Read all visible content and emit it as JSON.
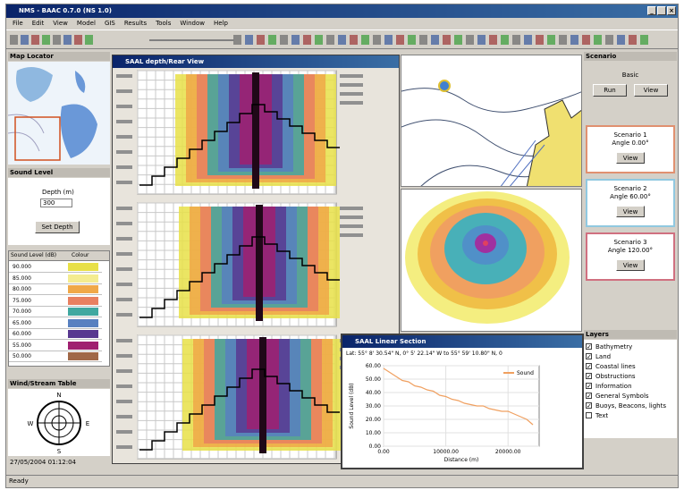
{
  "window": {
    "title": "NMS - BAAC 0.7.0 (NS 1.0)",
    "menu": [
      "File",
      "Edit",
      "View",
      "Model",
      "GIS",
      "Results",
      "Tools",
      "Window",
      "Help"
    ]
  },
  "left_panel": {
    "map_locator": "Map Locator",
    "sound_level": {
      "title": "Sound Level",
      "depth_label": "Depth (m)",
      "depth_value": "300",
      "button": "Set Depth"
    },
    "legend": {
      "headers": [
        "Sound Level (dB)",
        "Colour"
      ],
      "rows": [
        {
          "label": "90.000",
          "color": "#e8e048"
        },
        {
          "label": "85.000",
          "color": "#f4ec90"
        },
        {
          "label": "80.000",
          "color": "#f0a848"
        },
        {
          "label": "75.000",
          "color": "#e88060"
        },
        {
          "label": "70.000",
          "color": "#40a8a0"
        },
        {
          "label": "65.000",
          "color": "#5880c0"
        },
        {
          "label": "60.000",
          "color": "#583890"
        },
        {
          "label": "55.000",
          "color": "#a02070"
        },
        {
          "label": "50.000",
          "color": "#a06848"
        }
      ]
    },
    "wind_table": {
      "title": "Wind/Stream Table",
      "directions": [
        "N",
        "E",
        "S",
        "W"
      ]
    },
    "timestamp": "27/05/2004 01:12:04"
  },
  "depth_view": {
    "title": "SAAL depth/Rear View"
  },
  "scenario": {
    "title": "Scenario",
    "basic": {
      "label": "Basic",
      "buttons": [
        "Run",
        "View"
      ]
    },
    "items": [
      {
        "name": "Scenario 1",
        "angle": "Angle 0.00°",
        "button": "View",
        "color": "#e09070"
      },
      {
        "name": "Scenario 2",
        "angle": "Angle 60.00°",
        "button": "View",
        "color": "#90c8e0"
      },
      {
        "name": "Scenario 3",
        "angle": "Angle 120.00°",
        "button": "View",
        "color": "#d07080"
      }
    ]
  },
  "layers": {
    "title": "Layers",
    "items": [
      {
        "name": "Bathymetry",
        "checked": true
      },
      {
        "name": "Land",
        "checked": true
      },
      {
        "name": "Coastal lines",
        "checked": true
      },
      {
        "name": "Obstructions",
        "checked": true
      },
      {
        "name": "Information",
        "checked": true
      },
      {
        "name": "General Symbols",
        "checked": true
      },
      {
        "name": "Buoys, Beacons, lights",
        "checked": true
      },
      {
        "name": "Text",
        "checked": false
      }
    ]
  },
  "line_section": {
    "title": "SAAL Linear Section",
    "coords": "Lat: 55° 8' 30.54\" N, 0° 5' 22.14\" W to 55° 59' 10.80\" N, 0",
    "chart_data": {
      "type": "line",
      "x_label": "Distance (m)",
      "y_label": "Sound Level (dB)",
      "x": [
        0,
        1000,
        2000,
        3000,
        4000,
        5000,
        6000,
        7000,
        8000,
        9000,
        10000,
        11000,
        12000,
        13000,
        14000,
        15000,
        16000,
        17000,
        18000,
        19000,
        20000,
        21000,
        22000,
        23000,
        24000
      ],
      "series": [
        {
          "name": "Sound",
          "color": "#f0a060",
          "values": [
            58,
            55,
            52,
            49,
            48,
            45,
            44,
            42,
            41,
            38,
            37,
            35,
            34,
            32,
            31,
            30,
            30,
            28,
            27,
            26,
            26,
            24,
            22,
            20,
            16
          ]
        }
      ],
      "xlim": [
        0,
        25000
      ],
      "ylim": [
        0,
        60
      ],
      "xticks": [
        {
          "value": 0,
          "label": "0.00"
        },
        {
          "value": 10000,
          "label": "10000.00"
        },
        {
          "value": 20000,
          "label": "20000.00"
        }
      ],
      "yticks": [
        {
          "value": 0,
          "label": "0.00"
        },
        {
          "value": 10,
          "label": "10.00"
        },
        {
          "value": 20,
          "label": "20.00"
        },
        {
          "value": 30,
          "label": "30.00"
        },
        {
          "value": 40,
          "label": "40.00"
        },
        {
          "value": 50,
          "label": "50.00"
        },
        {
          "value": 60,
          "label": "60.00"
        }
      ],
      "grid": true
    }
  },
  "status": "Ready"
}
